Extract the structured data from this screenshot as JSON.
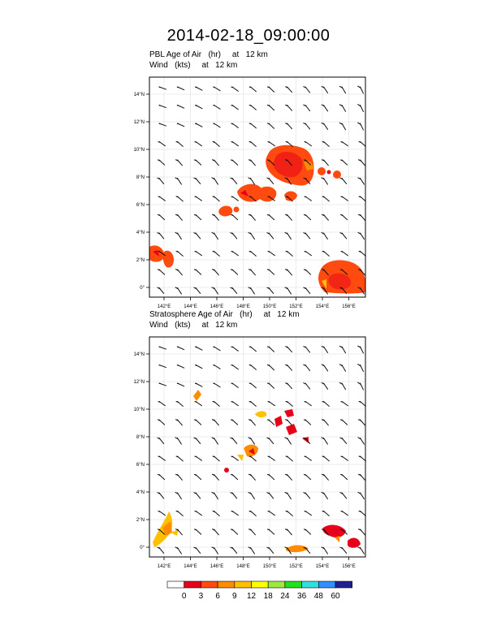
{
  "title": "2014-02-18_09:00:00",
  "panels": [
    {
      "id": "pbl",
      "line1": "PBL Age of Air   (hr)     at   12 km",
      "line2": "Wind   (kts)     at   12 km"
    },
    {
      "id": "strat",
      "line1": "Stratosphere Age of Air   (hr)     at   12 km",
      "line2": "Wind   (kts)     at   12 km"
    }
  ],
  "axes": {
    "lon_ticks": [
      "142°E",
      "144°E",
      "146°E",
      "148°E",
      "150°E",
      "152°E",
      "154°E",
      "156°E"
    ],
    "lat_ticks": [
      "14°N",
      "12°N",
      "10°N",
      "8°N",
      "6°N",
      "4°N",
      "2°N",
      "0°"
    ]
  },
  "colorbar": {
    "labels": [
      "0",
      "3",
      "6",
      "9",
      "12",
      "18",
      "24",
      "36",
      "48",
      "60"
    ],
    "colors": [
      "#ffffff",
      "#e8001a",
      "#ff4a10",
      "#ff8c00",
      "#ffc000",
      "#ffff00",
      "#a0e840",
      "#20e020",
      "#30e0e0",
      "#3090ff",
      "#202090"
    ]
  },
  "palette": {
    "red": "#e8001a",
    "orange_red": "#ff4a10",
    "orange": "#ff8c00",
    "amber": "#ffc000"
  }
}
